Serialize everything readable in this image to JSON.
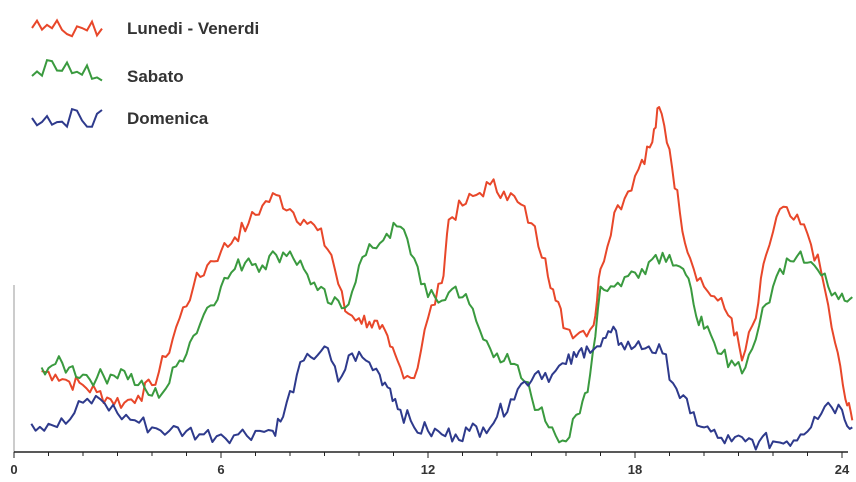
{
  "chart_data": {
    "type": "line",
    "title": "",
    "xlabel": "",
    "ylabel": "",
    "xlim": [
      0,
      24
    ],
    "ylim": [
      0,
      100
    ],
    "grid": false,
    "legend_placement": "top-left",
    "x_ticks": [
      0,
      6,
      12,
      18,
      24
    ],
    "series": [
      {
        "name": "Lunedi - Venerdi",
        "color": "#e8472a",
        "points": [
          [
            0.8,
            23
          ],
          [
            1.2,
            22
          ],
          [
            1.6,
            20
          ],
          [
            2.0,
            19
          ],
          [
            2.4,
            17
          ],
          [
            2.8,
            15
          ],
          [
            3.2,
            14
          ],
          [
            3.6,
            16
          ],
          [
            4.0,
            19
          ],
          [
            4.4,
            27
          ],
          [
            4.8,
            38
          ],
          [
            5.2,
            47
          ],
          [
            5.6,
            53
          ],
          [
            6.0,
            57
          ],
          [
            6.4,
            61
          ],
          [
            6.8,
            65
          ],
          [
            7.2,
            70
          ],
          [
            7.6,
            73
          ],
          [
            8.0,
            69
          ],
          [
            8.4,
            66
          ],
          [
            8.8,
            63
          ],
          [
            9.2,
            56
          ],
          [
            9.6,
            40
          ],
          [
            10.0,
            38
          ],
          [
            10.3,
            37
          ],
          [
            10.6,
            35
          ],
          [
            10.9,
            30
          ],
          [
            11.2,
            24
          ],
          [
            11.6,
            21
          ],
          [
            12.0,
            38
          ],
          [
            12.4,
            48
          ],
          [
            12.6,
            66
          ],
          [
            13.0,
            70
          ],
          [
            13.4,
            73
          ],
          [
            13.8,
            76
          ],
          [
            14.2,
            74
          ],
          [
            14.6,
            71
          ],
          [
            15.0,
            65
          ],
          [
            15.4,
            55
          ],
          [
            15.7,
            43
          ],
          [
            16.0,
            35
          ],
          [
            16.4,
            34
          ],
          [
            16.8,
            36
          ],
          [
            17.0,
            52
          ],
          [
            17.4,
            68
          ],
          [
            17.8,
            74
          ],
          [
            18.2,
            83
          ],
          [
            18.5,
            88
          ],
          [
            18.7,
            98
          ],
          [
            19.0,
            86
          ],
          [
            19.3,
            68
          ],
          [
            19.6,
            55
          ],
          [
            20.0,
            47
          ],
          [
            20.4,
            43
          ],
          [
            20.8,
            38
          ],
          [
            21.1,
            26
          ],
          [
            21.5,
            38
          ],
          [
            21.8,
            56
          ],
          [
            22.2,
            69
          ],
          [
            22.6,
            66
          ],
          [
            23.0,
            62
          ],
          [
            23.4,
            51
          ],
          [
            23.8,
            31
          ],
          [
            24.1,
            15
          ],
          [
            24.3,
            9
          ]
        ]
      },
      {
        "name": "Sabato",
        "color": "#3a9a3f",
        "points": [
          [
            0.8,
            24
          ],
          [
            1.2,
            25
          ],
          [
            1.6,
            24
          ],
          [
            2.0,
            22
          ],
          [
            2.4,
            21
          ],
          [
            2.8,
            22
          ],
          [
            3.2,
            23
          ],
          [
            3.6,
            19
          ],
          [
            4.0,
            16
          ],
          [
            4.4,
            18
          ],
          [
            4.8,
            26
          ],
          [
            5.2,
            33
          ],
          [
            5.6,
            41
          ],
          [
            6.0,
            47
          ],
          [
            6.4,
            52
          ],
          [
            6.8,
            55
          ],
          [
            7.2,
            53
          ],
          [
            7.6,
            56
          ],
          [
            8.0,
            57
          ],
          [
            8.4,
            52
          ],
          [
            8.8,
            46
          ],
          [
            9.2,
            42
          ],
          [
            9.6,
            41
          ],
          [
            10.0,
            53
          ],
          [
            10.4,
            58
          ],
          [
            10.8,
            62
          ],
          [
            11.2,
            64
          ],
          [
            11.6,
            55
          ],
          [
            12.0,
            44
          ],
          [
            12.4,
            43
          ],
          [
            12.8,
            47
          ],
          [
            13.2,
            42
          ],
          [
            13.6,
            32
          ],
          [
            14.0,
            28
          ],
          [
            14.4,
            25
          ],
          [
            14.8,
            20
          ],
          [
            15.2,
            12
          ],
          [
            15.6,
            7
          ],
          [
            16.0,
            3
          ],
          [
            16.4,
            11
          ],
          [
            16.7,
            22
          ],
          [
            17.0,
            47
          ],
          [
            17.4,
            47
          ],
          [
            17.8,
            50
          ],
          [
            18.2,
            52
          ],
          [
            18.6,
            56
          ],
          [
            19.0,
            56
          ],
          [
            19.4,
            52
          ],
          [
            19.7,
            42
          ],
          [
            20.0,
            35
          ],
          [
            20.4,
            28
          ],
          [
            20.8,
            26
          ],
          [
            21.2,
            24
          ],
          [
            21.6,
            36
          ],
          [
            22.0,
            47
          ],
          [
            22.4,
            55
          ],
          [
            22.8,
            57
          ],
          [
            23.2,
            53
          ],
          [
            23.6,
            47
          ],
          [
            24.0,
            45
          ],
          [
            24.3,
            44
          ]
        ]
      },
      {
        "name": "Domenica",
        "color": "#2e3a8c",
        "points": [
          [
            0.5,
            8
          ],
          [
            1.0,
            8
          ],
          [
            1.5,
            8
          ],
          [
            2.0,
            14
          ],
          [
            2.5,
            15
          ],
          [
            3.0,
            11
          ],
          [
            3.5,
            9
          ],
          [
            4.0,
            7
          ],
          [
            4.5,
            6
          ],
          [
            5.0,
            6
          ],
          [
            5.5,
            5
          ],
          [
            6.0,
            5
          ],
          [
            6.5,
            5
          ],
          [
            7.0,
            6
          ],
          [
            7.5,
            6
          ],
          [
            7.8,
            10
          ],
          [
            8.2,
            22
          ],
          [
            8.6,
            27
          ],
          [
            9.0,
            30
          ],
          [
            9.4,
            20
          ],
          [
            9.8,
            28
          ],
          [
            10.2,
            26
          ],
          [
            10.6,
            22
          ],
          [
            10.9,
            18
          ],
          [
            11.2,
            12
          ],
          [
            11.6,
            7
          ],
          [
            12.0,
            6
          ],
          [
            12.4,
            5
          ],
          [
            12.8,
            5
          ],
          [
            13.2,
            6
          ],
          [
            13.6,
            7
          ],
          [
            14.0,
            10
          ],
          [
            14.4,
            15
          ],
          [
            14.8,
            20
          ],
          [
            15.2,
            23
          ],
          [
            15.6,
            22
          ],
          [
            16.0,
            25
          ],
          [
            16.3,
            27
          ],
          [
            16.6,
            30
          ],
          [
            17.0,
            30
          ],
          [
            17.3,
            34
          ],
          [
            17.6,
            31
          ],
          [
            18.0,
            30
          ],
          [
            18.4,
            30
          ],
          [
            18.8,
            28
          ],
          [
            19.2,
            18
          ],
          [
            19.6,
            11
          ],
          [
            20.0,
            7
          ],
          [
            20.4,
            4
          ],
          [
            20.8,
            3
          ],
          [
            21.2,
            3
          ],
          [
            21.6,
            3
          ],
          [
            22.0,
            3
          ],
          [
            22.4,
            3
          ],
          [
            22.8,
            5
          ],
          [
            23.2,
            10
          ],
          [
            23.6,
            14
          ],
          [
            24.0,
            12
          ],
          [
            24.3,
            7
          ]
        ]
      }
    ]
  }
}
